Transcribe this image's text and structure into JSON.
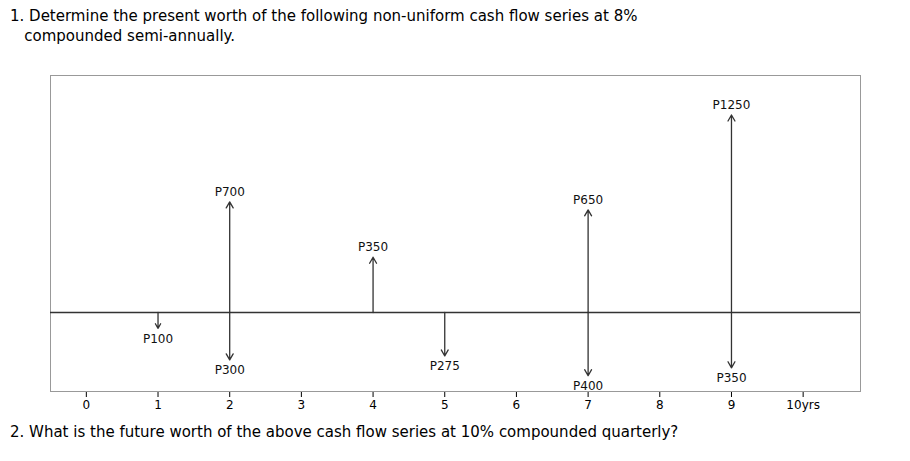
{
  "chart_data": {
    "type": "cashflow",
    "title": "1. Determine the present worth of the following non-uniform cash flow series at 8%\n   compounded semi-annually.",
    "annotations": [
      "2. What is the future worth of the above cash flow series at 10% compounded quarterly?"
    ],
    "x": [
      2,
      4,
      7,
      9,
      1,
      2,
      5,
      7,
      9
    ],
    "values": [
      700,
      350,
      650,
      1250,
      -100,
      -300,
      -275,
      -400,
      -350
    ],
    "value_labels": [
      "P700",
      "P350",
      "P650",
      "P1250",
      "P100",
      "P300",
      "P275",
      "P400",
      "P350"
    ],
    "data_labels": true,
    "color": "#333333",
    "xlim": [
      -0.5,
      10.8
    ],
    "xticks": [
      0,
      1,
      2,
      3,
      4,
      5,
      6,
      7,
      8,
      9,
      {
        "value": 10,
        "label": "10yrs"
      }
    ],
    "ylim": [
      -500,
      1500
    ],
    "tick_labels": "x",
    "grid": false
  }
}
